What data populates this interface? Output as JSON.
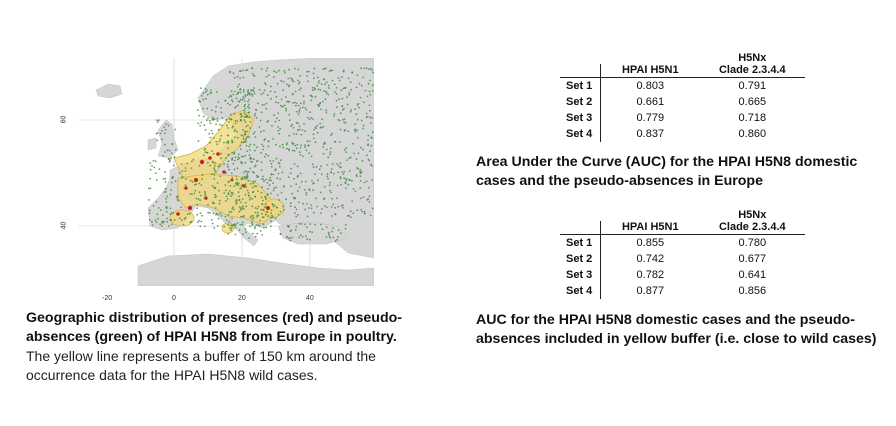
{
  "map": {
    "y_ticks": [
      "60",
      "40"
    ],
    "x_ticks": [
      "-20",
      "0",
      "20",
      "40"
    ],
    "colors": {
      "land": "#d4d4d4",
      "sea": "#ffffff",
      "absence": "#3f8a3f",
      "presence": "#c0261e",
      "buffer": "#f0d878"
    }
  },
  "left_caption": {
    "bold": "Geographic distribution of presences (red) and pseudo-absences (green) of HPAI H5N8 from Europe in poultry.",
    "plain": "The yellow line represents a buffer of 150 km around the occurrence data for the HPAI H5N8 wild cases."
  },
  "table1": {
    "headers": {
      "col_a": "HPAI H5N1",
      "col_b_line1": "H5Nx",
      "col_b_line2": "Clade 2.3.4.4"
    },
    "rows": [
      {
        "set": "Set 1",
        "a": "0.803",
        "b": "0.791"
      },
      {
        "set": "Set 2",
        "a": "0.661",
        "b": "0.665"
      },
      {
        "set": "Set 3",
        "a": "0.779",
        "b": "0.718"
      },
      {
        "set": "Set 4",
        "a": "0.837",
        "b": "0.860"
      }
    ],
    "caption": "Area Under the Curve (AUC) for the HPAI H5N8 domestic cases and  the pseudo-absences in Europe"
  },
  "table2": {
    "headers": {
      "col_a": "HPAI H5N1",
      "col_b_line1": "H5Nx",
      "col_b_line2": "Clade 2.3.4.4"
    },
    "rows": [
      {
        "set": "Set 1",
        "a": "0.855",
        "b": "0.780"
      },
      {
        "set": "Set 2",
        "a": "0.742",
        "b": "0.677"
      },
      {
        "set": "Set 3",
        "a": "0.782",
        "b": "0.641"
      },
      {
        "set": "Set 4",
        "a": "0.877",
        "b": "0.856"
      }
    ],
    "caption": "AUC for the HPAI H5N8 domestic cases and  the pseudo-absences included in yellow buffer (i.e. close to wild cases)"
  }
}
